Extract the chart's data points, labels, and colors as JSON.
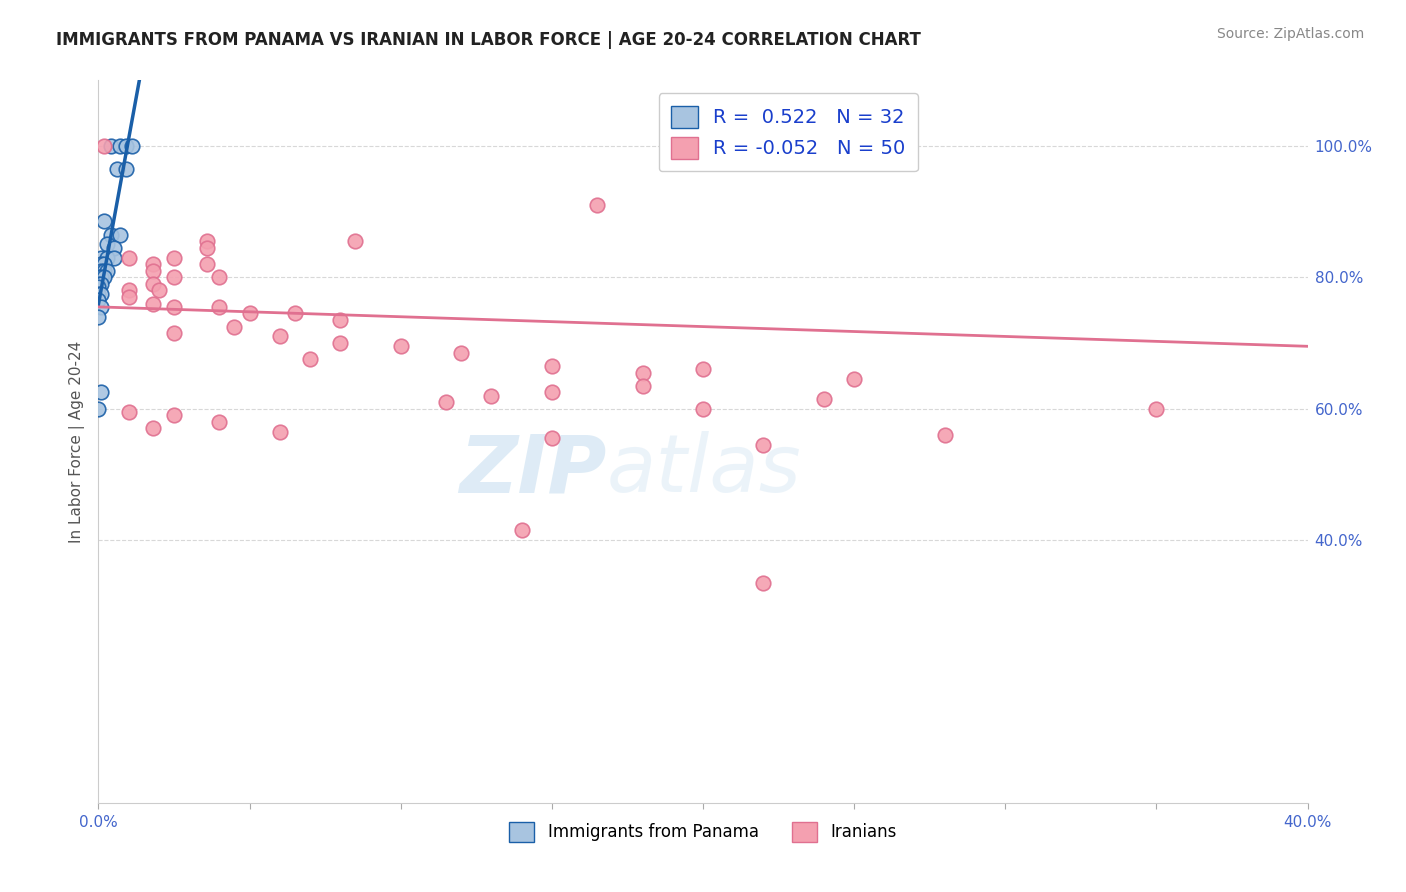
{
  "title": "IMMIGRANTS FROM PANAMA VS IRANIAN IN LABOR FORCE | AGE 20-24 CORRELATION CHART",
  "source": "Source: ZipAtlas.com",
  "ylabel": "In Labor Force | Age 20-24",
  "x_min": 0.0,
  "x_max": 0.4,
  "y_min": 0.0,
  "y_max": 1.1,
  "legend_r_panama": "R =  0.522",
  "legend_n_panama": "N = 32",
  "legend_r_iranian": "R = -0.052",
  "legend_n_iranian": "N = 50",
  "panama_color": "#a8c4e0",
  "iranian_color": "#f4a0b0",
  "panama_line_color": "#1a5fa8",
  "iranian_line_color": "#e07090",
  "panama_scatter": [
    [
      0.004,
      1.0
    ],
    [
      0.007,
      1.0
    ],
    [
      0.009,
      1.0
    ],
    [
      0.011,
      1.0
    ],
    [
      0.006,
      0.965
    ],
    [
      0.009,
      0.965
    ],
    [
      0.002,
      0.885
    ],
    [
      0.004,
      0.865
    ],
    [
      0.007,
      0.865
    ],
    [
      0.003,
      0.85
    ],
    [
      0.005,
      0.845
    ],
    [
      0.001,
      0.83
    ],
    [
      0.003,
      0.83
    ],
    [
      0.005,
      0.83
    ],
    [
      0.001,
      0.82
    ],
    [
      0.002,
      0.82
    ],
    [
      0.001,
      0.81
    ],
    [
      0.002,
      0.81
    ],
    [
      0.003,
      0.81
    ],
    [
      0.0,
      0.8
    ],
    [
      0.001,
      0.8
    ],
    [
      0.002,
      0.8
    ],
    [
      0.0,
      0.79
    ],
    [
      0.001,
      0.79
    ],
    [
      0.0,
      0.785
    ],
    [
      0.0,
      0.775
    ],
    [
      0.001,
      0.775
    ],
    [
      0.0,
      0.765
    ],
    [
      0.001,
      0.755
    ],
    [
      0.0,
      0.74
    ],
    [
      0.001,
      0.625
    ],
    [
      0.0,
      0.6
    ]
  ],
  "iranian_scatter": [
    [
      0.002,
      1.0
    ],
    [
      0.165,
      0.91
    ],
    [
      0.036,
      0.855
    ],
    [
      0.085,
      0.855
    ],
    [
      0.036,
      0.845
    ],
    [
      0.01,
      0.83
    ],
    [
      0.025,
      0.83
    ],
    [
      0.018,
      0.82
    ],
    [
      0.036,
      0.82
    ],
    [
      0.018,
      0.81
    ],
    [
      0.025,
      0.8
    ],
    [
      0.04,
      0.8
    ],
    [
      0.018,
      0.79
    ],
    [
      0.01,
      0.78
    ],
    [
      0.02,
      0.78
    ],
    [
      0.01,
      0.77
    ],
    [
      0.018,
      0.76
    ],
    [
      0.025,
      0.755
    ],
    [
      0.04,
      0.755
    ],
    [
      0.05,
      0.745
    ],
    [
      0.065,
      0.745
    ],
    [
      0.08,
      0.735
    ],
    [
      0.045,
      0.725
    ],
    [
      0.025,
      0.715
    ],
    [
      0.06,
      0.71
    ],
    [
      0.08,
      0.7
    ],
    [
      0.1,
      0.695
    ],
    [
      0.12,
      0.685
    ],
    [
      0.07,
      0.675
    ],
    [
      0.15,
      0.665
    ],
    [
      0.2,
      0.66
    ],
    [
      0.18,
      0.655
    ],
    [
      0.25,
      0.645
    ],
    [
      0.18,
      0.635
    ],
    [
      0.15,
      0.625
    ],
    [
      0.13,
      0.62
    ],
    [
      0.24,
      0.615
    ],
    [
      0.115,
      0.61
    ],
    [
      0.2,
      0.6
    ],
    [
      0.35,
      0.6
    ],
    [
      0.01,
      0.595
    ],
    [
      0.025,
      0.59
    ],
    [
      0.04,
      0.58
    ],
    [
      0.018,
      0.57
    ],
    [
      0.06,
      0.565
    ],
    [
      0.28,
      0.56
    ],
    [
      0.15,
      0.555
    ],
    [
      0.22,
      0.545
    ],
    [
      0.14,
      0.415
    ],
    [
      0.22,
      0.335
    ]
  ],
  "watermark_zip": "ZIP",
  "watermark_atlas": "atlas",
  "background_color": "#ffffff",
  "grid_color": "#d8d8d8"
}
